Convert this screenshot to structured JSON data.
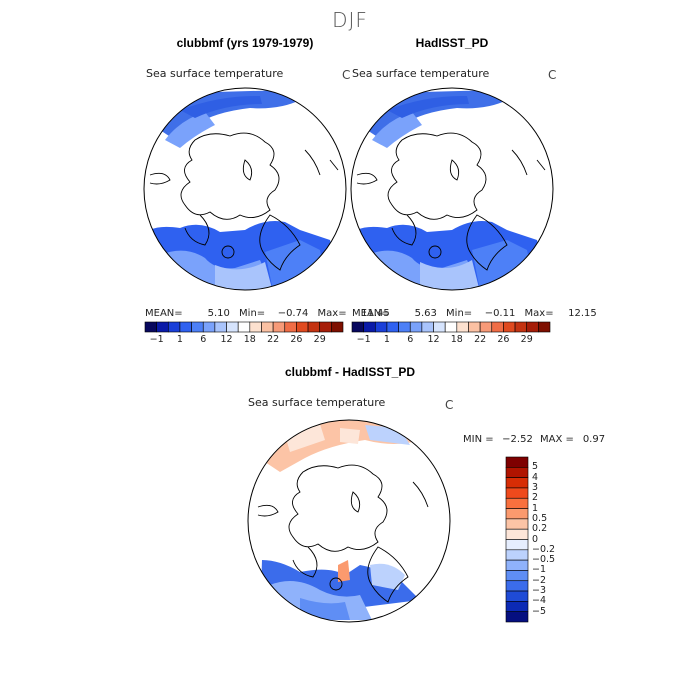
{
  "season": "DJF",
  "left_panel": {
    "title": "clubbmf (yrs 1979-1979)",
    "variable": "Sea surface temperature",
    "units": "C",
    "stats": {
      "mean_label": "MEAN=",
      "mean": "5.10",
      "min_label": "Min=",
      "min": "-0.74",
      "max_label": "Max=",
      "max": "11.45"
    }
  },
  "right_panel": {
    "title": "HadISST_PD",
    "variable": "Sea surface temperature",
    "units": "C",
    "stats": {
      "mean_label": "MEAN=",
      "mean": "5.63",
      "min_label": "Min=",
      "min": "-0.11",
      "max_label": "Max=",
      "max": "12.15"
    }
  },
  "top_colorbar": {
    "labels": [
      "-1",
      "1",
      "6",
      "12",
      "18",
      "22",
      "26",
      "29"
    ],
    "colors": [
      "#08085e",
      "#0a1aa8",
      "#1a3fd9",
      "#2f61f0",
      "#4d80f7",
      "#7aa2fb",
      "#a9c4fc",
      "#d6e4fd",
      "#ffffff",
      "#fde1cf",
      "#fbc1a3",
      "#f79a78",
      "#f06d46",
      "#e04a1f",
      "#c43311",
      "#a61d08",
      "#7e0f00"
    ]
  },
  "diff_panel": {
    "title": "clubbmf - HadISST_PD",
    "variable": "Sea surface temperature",
    "units": "C",
    "stats": {
      "min_label": "MIN =",
      "min": "-2.52",
      "max_label": "MAX =",
      "max": "0.97"
    }
  },
  "diff_colorbar": {
    "labels": [
      "5",
      "4",
      "3",
      "2",
      "1",
      "0.5",
      "0.2",
      "0",
      "-0.2",
      "-0.5",
      "-1",
      "-2",
      "-3",
      "-4",
      "-5"
    ],
    "colors": [
      "#7e0000",
      "#b01400",
      "#d72d05",
      "#ef4a1c",
      "#f8703e",
      "#fb9a6e",
      "#fcc4a6",
      "#fde6d9",
      "#e6eefe",
      "#bcd2fd",
      "#8fb2fb",
      "#5f8ef5",
      "#3b6ceb",
      "#1f4bd6",
      "#0c2ab5",
      "#050f80"
    ]
  }
}
